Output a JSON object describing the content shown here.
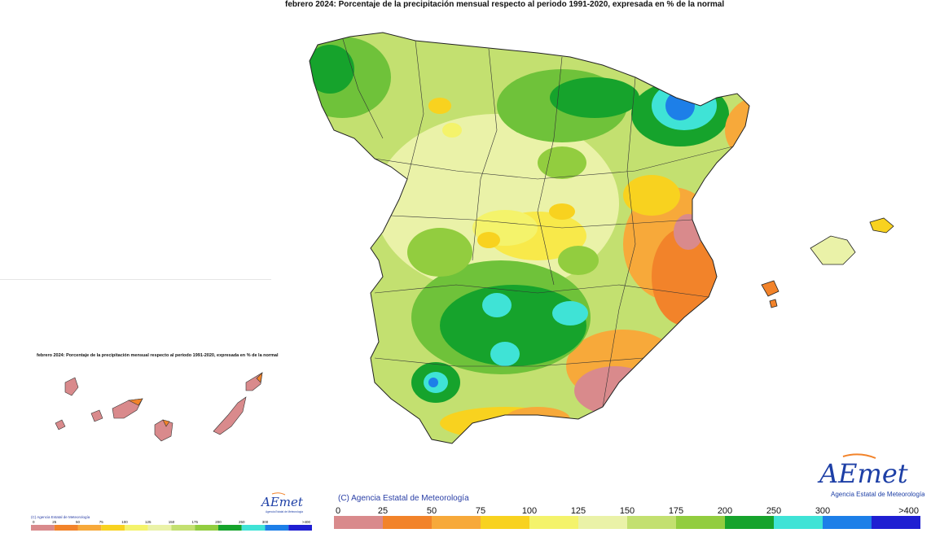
{
  "map": {
    "title": "febrero 2024: Porcentaje de la precipitación mensual respecto al periodo 1991-2020, expresada en % de la normal",
    "inset_title": "febrero 2024: Porcentaje de la precipitación mensual respecto al periodo 1991-2020, expresada en % de la normal",
    "copyright": "(C) Agencia Estatal de Meteorología",
    "copyright_small": "(C) Agencia Estatal de Meteorología",
    "region": "Península Ibérica y Baleares",
    "inset_region": "Islas Canarias"
  },
  "legend": {
    "ticks": [
      "0",
      "25",
      "50",
      "75",
      "100",
      "125",
      "150",
      "175",
      "200",
      "250",
      "300",
      ">400"
    ],
    "colors": [
      "#d98a8c",
      "#f2832a",
      "#f7a93a",
      "#f8d21f",
      "#f4f36b",
      "#eaf2a8",
      "#c3e070",
      "#92cd3f",
      "#16a32c",
      "#3fe3d6",
      "#1d7fe8",
      "#1f1fd2"
    ]
  },
  "logo": {
    "name": "AEMet",
    "subtitle": "Agencia Estatal de Meteorología"
  }
}
